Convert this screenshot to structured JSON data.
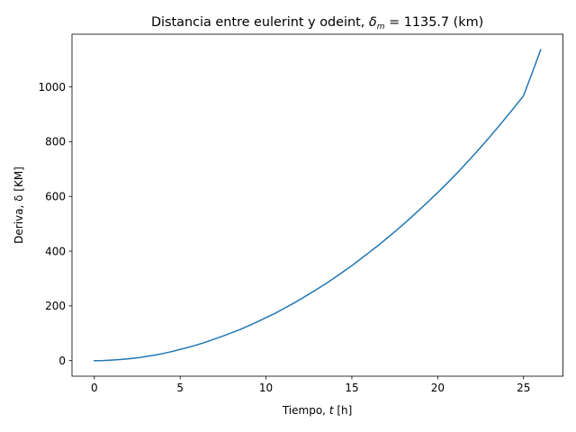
{
  "chart_data": {
    "type": "line",
    "title_prefix": "Distancia entre eulerint y odeint, ",
    "title_symbol": "δ",
    "title_subscript": "m",
    "title_suffix": " = 1135.7 (km)",
    "xlabel_prefix": "Tiempo, ",
    "xlabel_var": "t",
    "xlabel_suffix": " [h]",
    "ylabel": "Deriva, δ [KM]",
    "xlim": [
      -1.3,
      27.3
    ],
    "ylim": [
      -56.8,
      1192.5
    ],
    "xticks": [
      0,
      5,
      10,
      15,
      20,
      25
    ],
    "xtick_labels": [
      "0",
      "5",
      "10",
      "15",
      "20",
      "25"
    ],
    "yticks": [
      0,
      200,
      400,
      600,
      800,
      1000
    ],
    "ytick_labels": [
      "0",
      "200",
      "400",
      "600",
      "800",
      "1000"
    ],
    "grid": false,
    "color": "#1f77b4",
    "series": [
      {
        "x": [
          0,
          0.5,
          1,
          1.5,
          2,
          2.5,
          3,
          3.5,
          4,
          4.5,
          5,
          5.5,
          6,
          6.5,
          7,
          7.5,
          8,
          8.5,
          9,
          9.5,
          10,
          10.5,
          11,
          11.5,
          12,
          12.5,
          13,
          13.5,
          14,
          14.5,
          15,
          15.5,
          16,
          16.5,
          17,
          17.5,
          18,
          18.5,
          19,
          19.5,
          20,
          20.5,
          21,
          21.5,
          22,
          22.5,
          23,
          23.5,
          24,
          24.5,
          25,
          25.5,
          26
        ],
        "values": [
          0,
          0.4,
          2,
          4,
          7,
          10,
          15,
          20,
          26,
          33,
          41,
          49,
          58,
          68,
          79,
          90,
          102,
          114,
          128,
          142,
          157,
          172,
          189,
          206,
          224,
          243,
          262,
          282,
          303,
          325,
          347,
          371,
          395,
          419,
          445,
          471,
          498,
          526,
          555,
          584,
          614,
          645,
          677,
          710,
          744,
          779,
          815,
          852,
          890,
          928,
          968,
          1051,
          1135.7
        ]
      }
    ]
  }
}
